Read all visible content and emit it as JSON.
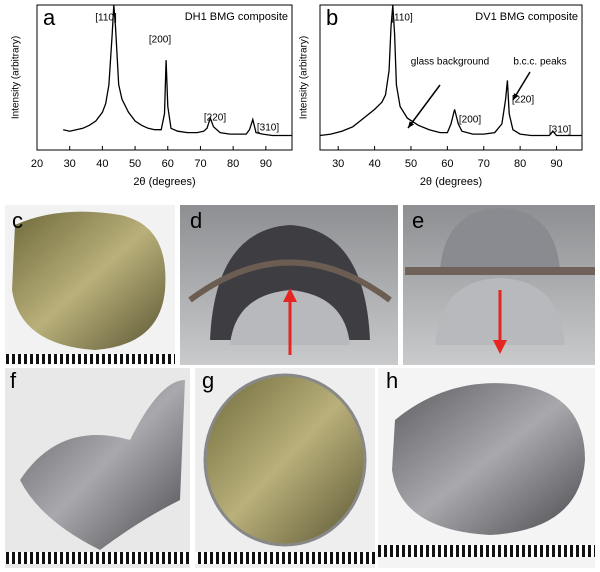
{
  "chart_data": [
    {
      "type": "line",
      "label": "a",
      "title": "DH1 BMG composite",
      "x_label": "2θ (degrees)",
      "y_label": "Intensity (arbitrary)",
      "x": [
        28,
        30,
        32,
        34,
        36,
        38,
        40,
        41,
        42,
        43,
        43.5,
        44,
        45,
        46,
        48,
        50,
        52,
        54,
        56,
        58,
        59,
        59.5,
        60,
        61,
        63,
        66,
        69,
        71,
        72,
        73,
        74,
        76,
        79,
        82,
        84,
        85,
        86,
        87,
        89,
        92,
        95,
        98
      ],
      "values": [
        14,
        13,
        14,
        15,
        17,
        20,
        26,
        32,
        45,
        80,
        100,
        85,
        45,
        35,
        26,
        20,
        17,
        15,
        14,
        14,
        25,
        62,
        30,
        15,
        13,
        12,
        12,
        13,
        15,
        22,
        16,
        12,
        11,
        11,
        11,
        14,
        21,
        12,
        11,
        10,
        10,
        10
      ],
      "color": "#000000",
      "xlim": [
        20,
        98
      ],
      "ylim": [
        0,
        100
      ],
      "xticks": [
        20,
        30,
        40,
        50,
        60,
        70,
        80,
        90
      ],
      "annotations": [
        "[110]",
        "[200]",
        "[220]",
        "[310]"
      ]
    },
    {
      "type": "line",
      "label": "b",
      "title": "DV1 BMG composite",
      "x_label": "2θ (degrees)",
      "y_label": "Intensity (arbitrary)",
      "x": [
        25,
        28,
        31,
        34,
        37,
        40,
        42,
        43,
        44,
        44.5,
        45,
        45.5,
        46,
        47,
        49,
        52,
        55,
        58,
        60,
        61,
        62,
        63,
        64,
        67,
        70,
        73,
        75,
        76,
        76.5,
        77,
        78,
        80,
        83,
        86,
        88,
        89,
        90,
        93,
        97
      ],
      "values": [
        10,
        11,
        13,
        16,
        22,
        28,
        33,
        38,
        55,
        85,
        100,
        80,
        45,
        30,
        22,
        17,
        14,
        12,
        12,
        18,
        28,
        18,
        13,
        11,
        11,
        12,
        18,
        35,
        48,
        25,
        14,
        11,
        10,
        10,
        10,
        13,
        10,
        10,
        10
      ],
      "color": "#000000",
      "xlim": [
        25,
        97
      ],
      "ylim": [
        0,
        100
      ],
      "xticks": [
        30,
        40,
        50,
        60,
        70,
        80,
        90
      ],
      "annotations": [
        "[110]",
        "glass background",
        "b.c.c. peaks",
        "[200]",
        "[220]",
        "[310]"
      ]
    }
  ],
  "panels": [
    "c",
    "d",
    "e",
    "f",
    "g",
    "h"
  ]
}
